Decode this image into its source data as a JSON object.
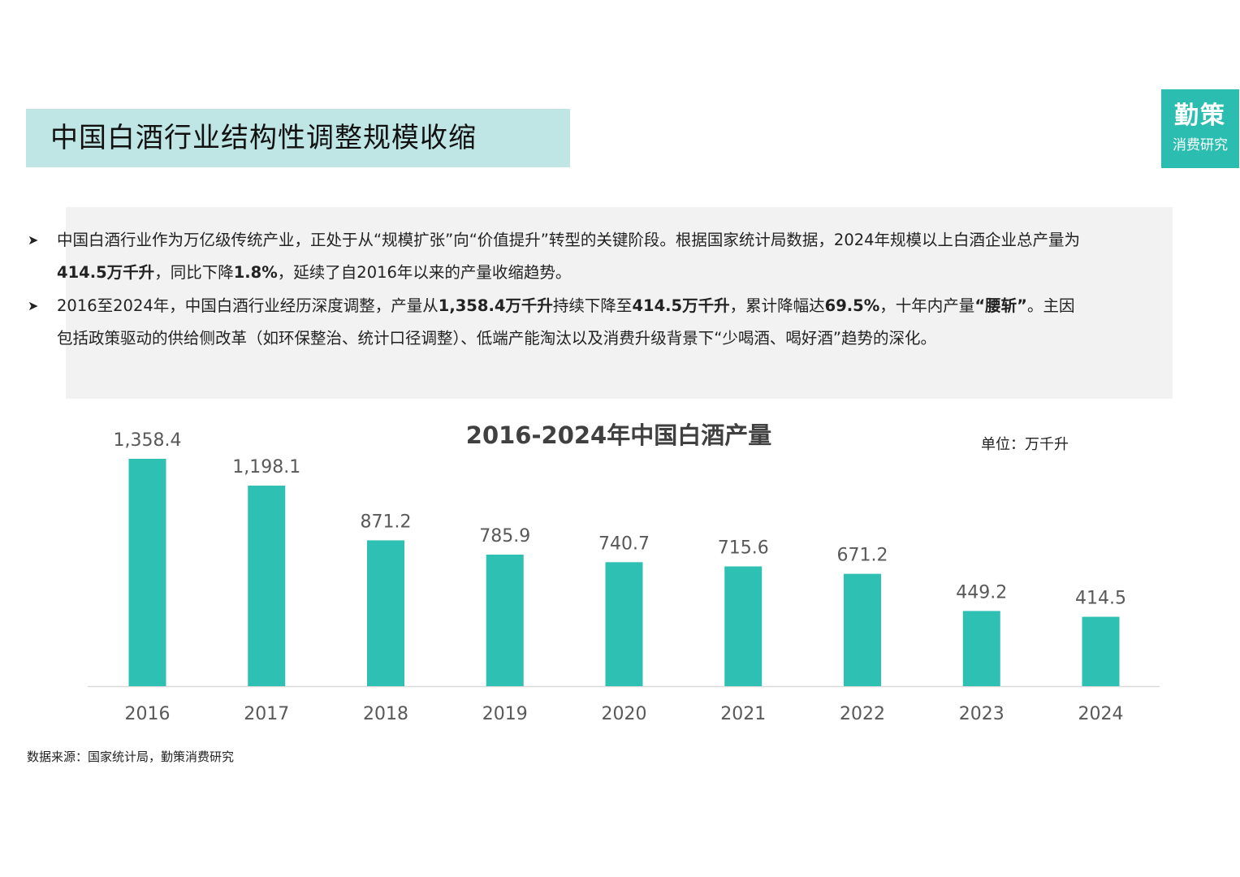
{
  "header": {
    "title": "中国白酒行业结构性调整规模收缩"
  },
  "logo": {
    "main": "勤策",
    "sub": "消费研究",
    "color": "#2abdb0"
  },
  "summary": {
    "bullet_icon": "arrow-bullet-icon",
    "bullets": [
      {
        "segments": [
          {
            "text": "中国白酒行业作为万亿级传统产业，正处于从“规模扩张”向“价值提升”转型的关键阶段。根据国家统计局数据，2024年规模以上白酒企业总产量为",
            "bold": false
          },
          {
            "text": "414.5万千升",
            "bold": true
          },
          {
            "text": "，同比下降",
            "bold": false
          },
          {
            "text": "1.8%",
            "bold": true
          },
          {
            "text": "，延续了自2016年以来的产量收缩趋势。",
            "bold": false
          }
        ]
      },
      {
        "segments": [
          {
            "text": "2016至2024年，中国白酒行业经历深度调整，产量从",
            "bold": false
          },
          {
            "text": "1,358.4万千升",
            "bold": true
          },
          {
            "text": "持续下降至",
            "bold": false
          },
          {
            "text": "414.5万千升",
            "bold": true
          },
          {
            "text": "，累计降幅达",
            "bold": false
          },
          {
            "text": "69.5%",
            "bold": true
          },
          {
            "text": "，十年内产量",
            "bold": false
          },
          {
            "text": "“腰斩”",
            "bold": true
          },
          {
            "text": "。主因包括政策驱动的供给侧改革（如环保整治、统计口径调整）、低端产能淘汰以及消费升级背景下“少喝酒、喝好酒”趋势的深化。",
            "bold": false
          }
        ]
      }
    ]
  },
  "chart_data": {
    "type": "bar",
    "title": "2016-2024年中国白酒产量",
    "unit_label": "单位：万千升",
    "categories": [
      "2016",
      "2017",
      "2018",
      "2019",
      "2020",
      "2021",
      "2022",
      "2023",
      "2024"
    ],
    "values": [
      1358.4,
      1198.1,
      871.2,
      785.9,
      740.7,
      715.6,
      671.2,
      449.2,
      414.5
    ],
    "value_labels": [
      "1,358.4",
      "1,198.1",
      "871.2",
      "785.9",
      "740.7",
      "715.6",
      "671.2",
      "449.2",
      "414.5"
    ],
    "ylim": [
      0,
      1358.4
    ],
    "grid": false,
    "bar_color": "#2ec0b2",
    "axis_color": "#d9d9d9"
  },
  "footer": {
    "source": "数据来源：国家统计局，勤策消费研究"
  }
}
